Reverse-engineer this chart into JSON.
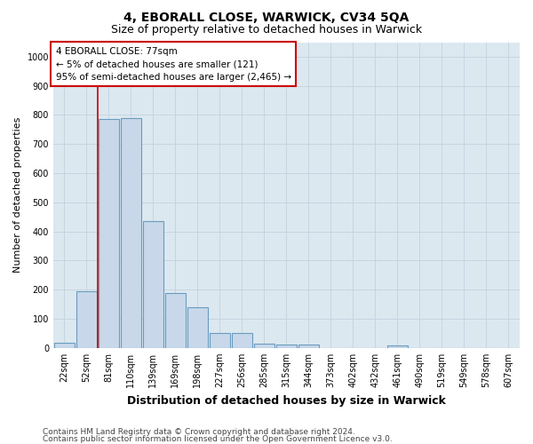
{
  "title1": "4, EBORALL CLOSE, WARWICK, CV34 5QA",
  "title2": "Size of property relative to detached houses in Warwick",
  "xlabel": "Distribution of detached houses by size in Warwick",
  "ylabel": "Number of detached properties",
  "categories": [
    "22sqm",
    "52sqm",
    "81sqm",
    "110sqm",
    "139sqm",
    "169sqm",
    "198sqm",
    "227sqm",
    "256sqm",
    "285sqm",
    "315sqm",
    "344sqm",
    "373sqm",
    "402sqm",
    "432sqm",
    "461sqm",
    "490sqm",
    "519sqm",
    "549sqm",
    "578sqm",
    "607sqm"
  ],
  "values": [
    18,
    195,
    785,
    790,
    435,
    190,
    140,
    50,
    50,
    15,
    12,
    12,
    0,
    0,
    0,
    10,
    0,
    0,
    0,
    0,
    0
  ],
  "bar_color": "#c8d8ea",
  "bar_edgecolor": "#6a9cbf",
  "bar_linewidth": 0.8,
  "vline_x_index": 2,
  "vline_color": "#cc0000",
  "vline_linewidth": 1.2,
  "annotation_text": "4 EBORALL CLOSE: 77sqm\n← 5% of detached houses are smaller (121)\n95% of semi-detached houses are larger (2,465) →",
  "annotation_box_edgecolor": "#cc0000",
  "annotation_box_facecolor": "#ffffff",
  "ylim": [
    0,
    1050
  ],
  "yticks": [
    0,
    100,
    200,
    300,
    400,
    500,
    600,
    700,
    800,
    900,
    1000
  ],
  "footnote1": "Contains HM Land Registry data © Crown copyright and database right 2024.",
  "footnote2": "Contains public sector information licensed under the Open Government Licence v3.0.",
  "bg_color": "#ffffff",
  "plot_bg_color": "#dce8f0",
  "grid_color": "#c5d5e0",
  "title1_fontsize": 10,
  "title2_fontsize": 9,
  "xlabel_fontsize": 9,
  "ylabel_fontsize": 8,
  "tick_fontsize": 7,
  "annotation_fontsize": 7.5,
  "footnote_fontsize": 6.5
}
